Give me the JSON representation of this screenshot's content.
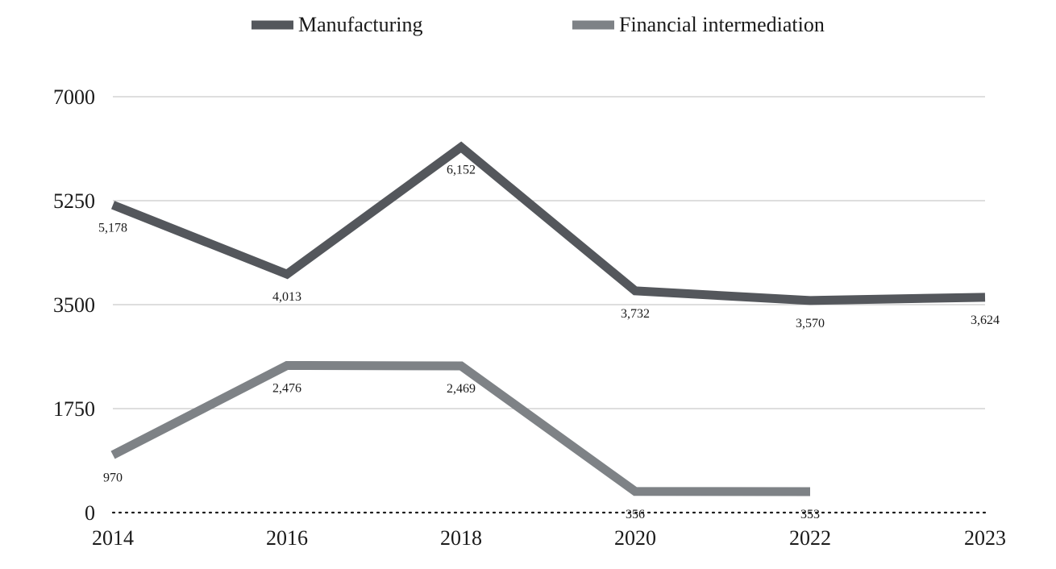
{
  "chart_data": {
    "type": "line",
    "title": "",
    "xlabel": "",
    "ylabel": "",
    "x": [
      "2014",
      "2016",
      "2018",
      "2020",
      "2022",
      "2023"
    ],
    "ylim": [
      0,
      7000
    ],
    "yticks": [
      "0",
      "1750",
      "3500",
      "5250",
      "7000"
    ],
    "grid": true,
    "legend_position": "top",
    "series": [
      {
        "name": "Manufacturing",
        "color": "#54575c",
        "values": [
          5178,
          4013,
          6152,
          3732,
          3570,
          3624
        ],
        "labels": [
          "5,178",
          "4,013",
          "6,152",
          "3,732",
          "3,570",
          "3,624"
        ]
      },
      {
        "name": "Financial intermediation",
        "color": "#7e8286",
        "values": [
          970,
          2476,
          2469,
          356,
          353,
          null
        ],
        "labels": [
          "970",
          "2,476",
          "2,469",
          "356",
          "353",
          null
        ]
      }
    ]
  }
}
